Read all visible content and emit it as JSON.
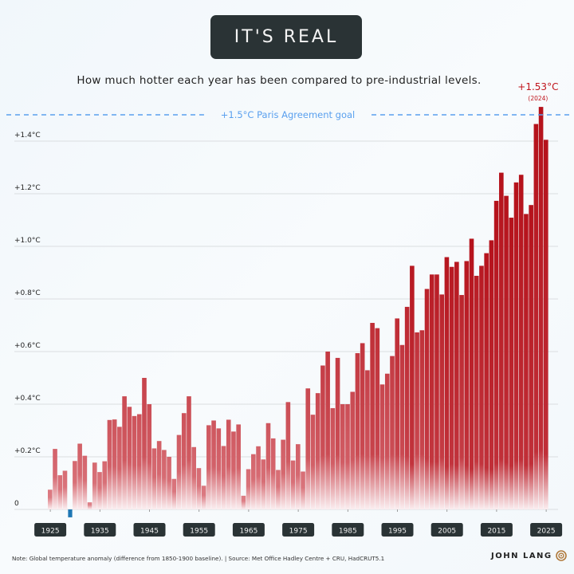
{
  "header": {
    "title": "IT'S REAL",
    "subtitle": "How much hotter each year has been compared to pre-industrial levels."
  },
  "footer": {
    "note": "Note: Global temperature anomaly (difference from 1850-1900 baseline).  |  Source: Met Office Hadley Centre + CRU, HadCRUT5.1",
    "brand": "JOHN LANG",
    "logo_icon": "target-icon"
  },
  "colors": {
    "bar_high": "#b5121b",
    "bar_low": "#e0868d",
    "negative_bar": "#1f77b4",
    "paris_line": "#5aa0ee",
    "peak_label": "#c0141c",
    "tick_box": "#2a3335"
  },
  "chart_data": {
    "type": "bar",
    "title": "IT'S REAL",
    "subtitle": "How much hotter each year has been compared to pre-industrial levels.",
    "xlabel": "",
    "ylabel": "",
    "ylim": [
      -0.05,
      1.55
    ],
    "grid": true,
    "y_ticks": [
      0,
      0.2,
      0.4,
      0.6,
      0.8,
      1.0,
      1.2,
      1.4
    ],
    "y_tick_labels": [
      "0",
      "+0.2°C",
      "+0.4°C",
      "+0.6°C",
      "+0.8°C",
      "+1.0°C",
      "+1.2°C",
      "+1.4°C"
    ],
    "x_tick_labels": [
      "1925",
      "1935",
      "1945",
      "1955",
      "1965",
      "1975",
      "1985",
      "1995",
      "2005",
      "2015",
      "2025"
    ],
    "years": [
      1925,
      1926,
      1927,
      1928,
      1929,
      1930,
      1931,
      1932,
      1933,
      1934,
      1935,
      1936,
      1937,
      1938,
      1939,
      1940,
      1941,
      1942,
      1943,
      1944,
      1945,
      1946,
      1947,
      1948,
      1949,
      1950,
      1951,
      1952,
      1953,
      1954,
      1955,
      1956,
      1957,
      1958,
      1959,
      1960,
      1961,
      1962,
      1963,
      1964,
      1965,
      1966,
      1967,
      1968,
      1969,
      1970,
      1971,
      1972,
      1973,
      1974,
      1975,
      1976,
      1977,
      1978,
      1979,
      1980,
      1981,
      1982,
      1983,
      1984,
      1985,
      1986,
      1987,
      1988,
      1989,
      1990,
      1991,
      1992,
      1993,
      1994,
      1995,
      1996,
      1997,
      1998,
      1999,
      2000,
      2001,
      2002,
      2003,
      2004,
      2005,
      2006,
      2007,
      2008,
      2009,
      2010,
      2011,
      2012,
      2013,
      2014,
      2015,
      2016,
      2017,
      2018,
      2019,
      2020,
      2021,
      2022,
      2023,
      2024,
      2025
    ],
    "values": [
      0.075,
      0.23,
      0.13,
      0.147,
      -0.03,
      0.184,
      0.25,
      0.204,
      0.027,
      0.178,
      0.142,
      0.183,
      0.34,
      0.342,
      0.314,
      0.43,
      0.39,
      0.355,
      0.362,
      0.5,
      0.4,
      0.232,
      0.26,
      0.226,
      0.2,
      0.116,
      0.283,
      0.366,
      0.43,
      0.237,
      0.157,
      0.09,
      0.32,
      0.338,
      0.308,
      0.241,
      0.341,
      0.296,
      0.323,
      0.052,
      0.153,
      0.21,
      0.24,
      0.19,
      0.328,
      0.27,
      0.15,
      0.265,
      0.408,
      0.186,
      0.248,
      0.144,
      0.46,
      0.36,
      0.442,
      0.547,
      0.6,
      0.385,
      0.576,
      0.4,
      0.4,
      0.447,
      0.594,
      0.632,
      0.529,
      0.709,
      0.689,
      0.475,
      0.516,
      0.583,
      0.726,
      0.625,
      0.77,
      0.926,
      0.673,
      0.681,
      0.838,
      0.893,
      0.893,
      0.817,
      0.959,
      0.922,
      0.941,
      0.815,
      0.944,
      1.029,
      0.888,
      0.926,
      0.974,
      1.023,
      1.173,
      1.28,
      1.192,
      1.109,
      1.243,
      1.272,
      1.123,
      1.157,
      1.465,
      1.53,
      1.405
    ],
    "reference_line": {
      "value": 1.5,
      "label": "+1.5°C Paris Agreement goal",
      "style": "dashed"
    },
    "annotation": {
      "value_label": "+1.53°C",
      "year_label": "(2024)",
      "year": 2024
    }
  }
}
